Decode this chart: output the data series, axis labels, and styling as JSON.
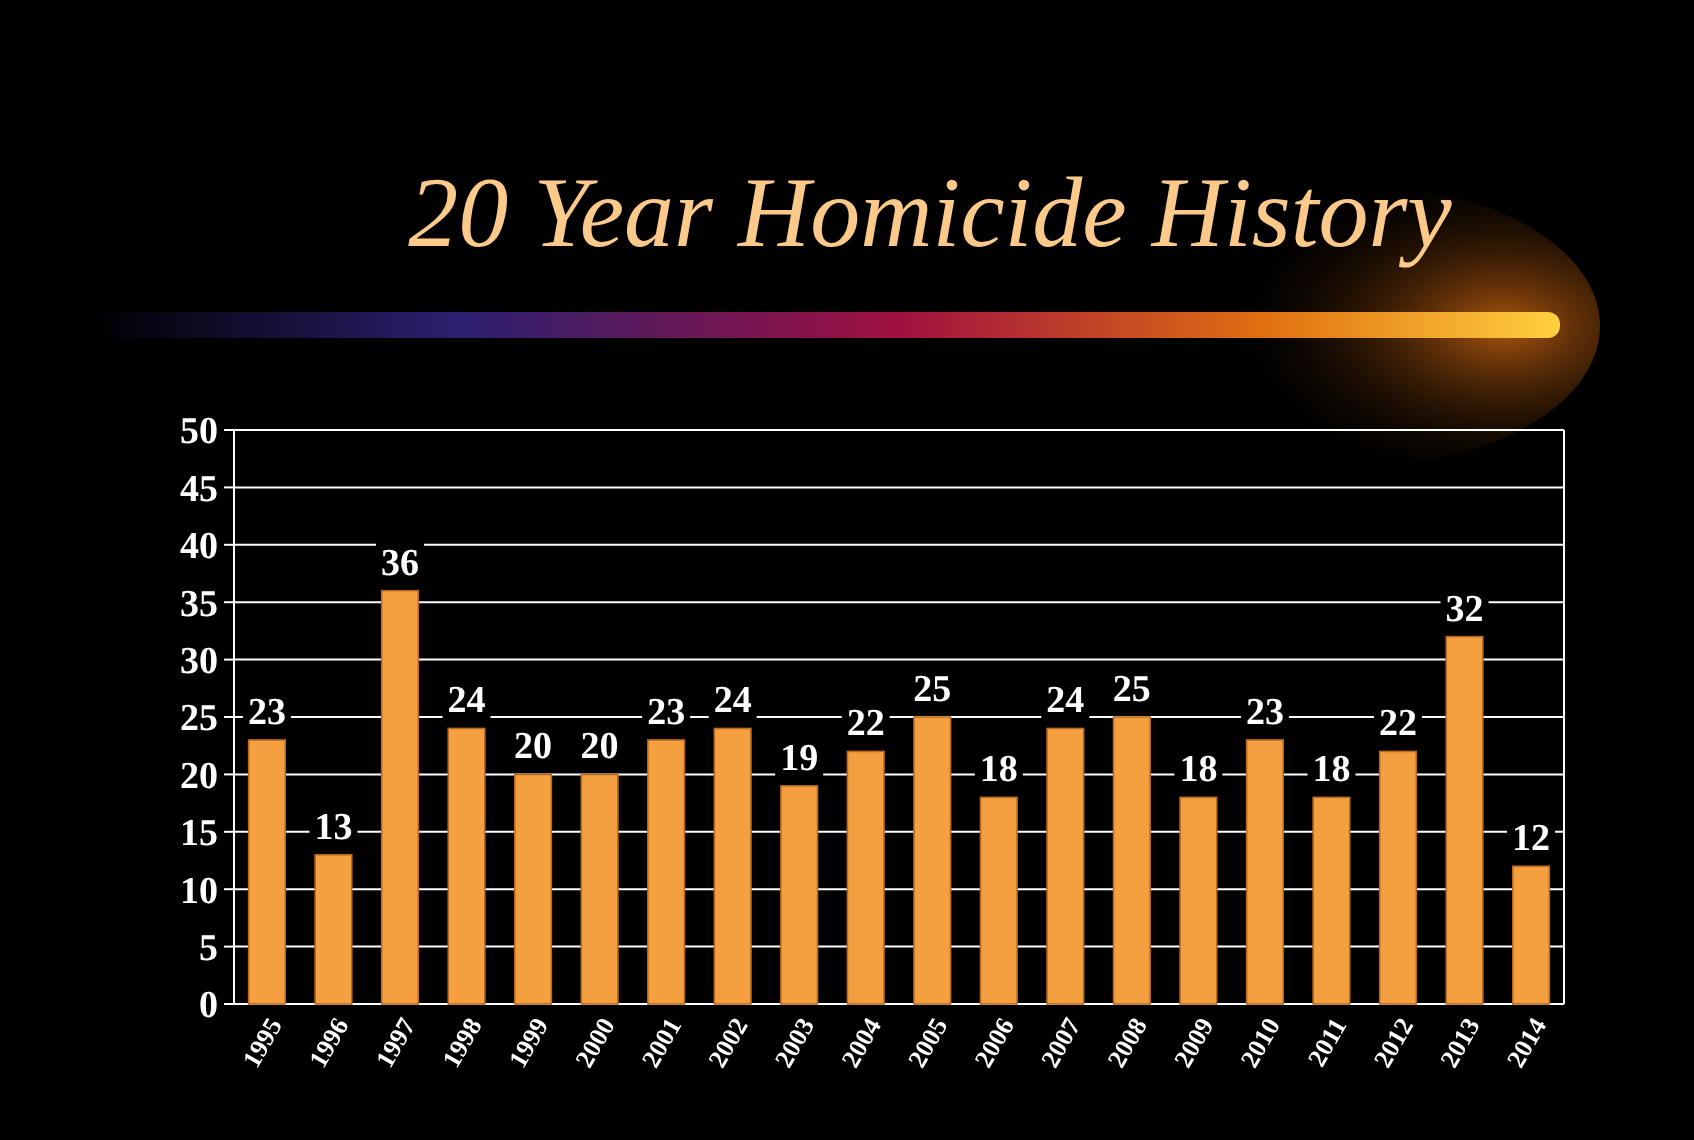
{
  "chart_data": {
    "type": "bar",
    "title": "20 Year Homicide History",
    "categories": [
      "1995",
      "1996",
      "1997",
      "1998",
      "1999",
      "2000",
      "2001",
      "2002",
      "2003",
      "2004",
      "2005",
      "2006",
      "2007",
      "2008",
      "2009",
      "2010",
      "2011",
      "2012",
      "2013",
      "2014"
    ],
    "values": [
      23,
      13,
      36,
      24,
      20,
      20,
      23,
      24,
      19,
      22,
      25,
      18,
      24,
      25,
      18,
      23,
      18,
      22,
      32,
      12
    ],
    "color": "#f5a040",
    "ylim": [
      0,
      50
    ],
    "yticks": [
      0,
      5,
      10,
      15,
      20,
      25,
      30,
      35,
      40,
      45,
      50
    ],
    "grid": "y",
    "data_labels": true
  }
}
